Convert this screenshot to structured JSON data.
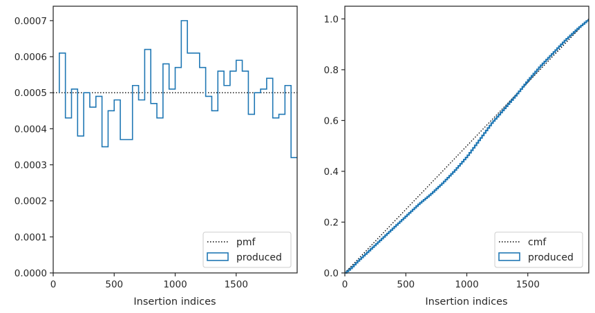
{
  "chart_data": [
    {
      "type": "step",
      "xlabel": "Insertion indices",
      "ylabel": "",
      "xlim": [
        0,
        2000
      ],
      "ylim": [
        0,
        0.00074
      ],
      "xticks": [
        0,
        500,
        1000,
        1500
      ],
      "xtick_labels": [
        "0",
        "500",
        "1000",
        "1500"
      ],
      "yticks": [
        0,
        0.0001,
        0.0002,
        0.0003,
        0.0004,
        0.0005,
        0.0006,
        0.0007
      ],
      "ytick_labels": [
        "0.0000",
        "0.0001",
        "0.0002",
        "0.0003",
        "0.0004",
        "0.0005",
        "0.0006",
        "0.0007"
      ],
      "legend_position": "bottom-right",
      "series": [
        {
          "name": "pmf",
          "style": "dotted",
          "color": "#000000",
          "x": [
            0,
            2000
          ],
          "y": [
            0.0005,
            0.0005
          ]
        },
        {
          "name": "produced",
          "style": "step-histogram",
          "color": "#1f77b4",
          "bin_edges": [
            50,
            100,
            150,
            200,
            250,
            300,
            350,
            400,
            450,
            500,
            550,
            600,
            650,
            700,
            750,
            800,
            850,
            900,
            950,
            1000,
            1050,
            1100,
            1150,
            1200,
            1250,
            1300,
            1350,
            1400,
            1450,
            1500,
            1550,
            1600,
            1650,
            1700,
            1750,
            1800,
            1850,
            1900,
            1950,
            2000
          ],
          "values": [
            0.00061,
            0.00043,
            0.00051,
            0.00038,
            0.0005,
            0.00046,
            0.00049,
            0.00035,
            0.00045,
            0.00048,
            0.00037,
            0.00037,
            0.00052,
            0.00048,
            0.00062,
            0.00047,
            0.00043,
            0.00058,
            0.00051,
            0.00057,
            0.0007,
            0.00061,
            0.00061,
            0.00057,
            0.00049,
            0.00045,
            0.00056,
            0.00052,
            0.00056,
            0.00059,
            0.00056,
            0.00044,
            0.0005,
            0.00051,
            0.00054,
            0.00043,
            0.00044,
            0.00052,
            0.00032
          ]
        }
      ]
    },
    {
      "type": "line",
      "xlabel": "Insertion indices",
      "ylabel": "",
      "xlim": [
        0,
        2000
      ],
      "ylim": [
        0,
        1.05
      ],
      "xticks": [
        0,
        500,
        1000,
        1500
      ],
      "xtick_labels": [
        "0",
        "500",
        "1000",
        "1500"
      ],
      "yticks": [
        0,
        0.2,
        0.4,
        0.6,
        0.8,
        1.0
      ],
      "ytick_labels": [
        "0.0",
        "0.2",
        "0.4",
        "0.6",
        "0.8",
        "1.0"
      ],
      "legend_position": "bottom-right",
      "series": [
        {
          "name": "cmf",
          "style": "dotted",
          "color": "#000000",
          "x": [
            0,
            2000
          ],
          "y": [
            0,
            1
          ]
        },
        {
          "name": "produced",
          "style": "step",
          "color": "#1f77b4",
          "x": [
            0,
            50,
            100,
            200,
            300,
            400,
            500,
            600,
            700,
            800,
            900,
            1000,
            1100,
            1200,
            1300,
            1400,
            1500,
            1600,
            1700,
            1800,
            1900,
            2000
          ],
          "y": [
            0,
            0.02,
            0.045,
            0.09,
            0.135,
            0.18,
            0.225,
            0.27,
            0.31,
            0.355,
            0.405,
            0.46,
            0.525,
            0.59,
            0.645,
            0.7,
            0.76,
            0.815,
            0.865,
            0.915,
            0.96,
            1.0
          ]
        }
      ]
    }
  ]
}
